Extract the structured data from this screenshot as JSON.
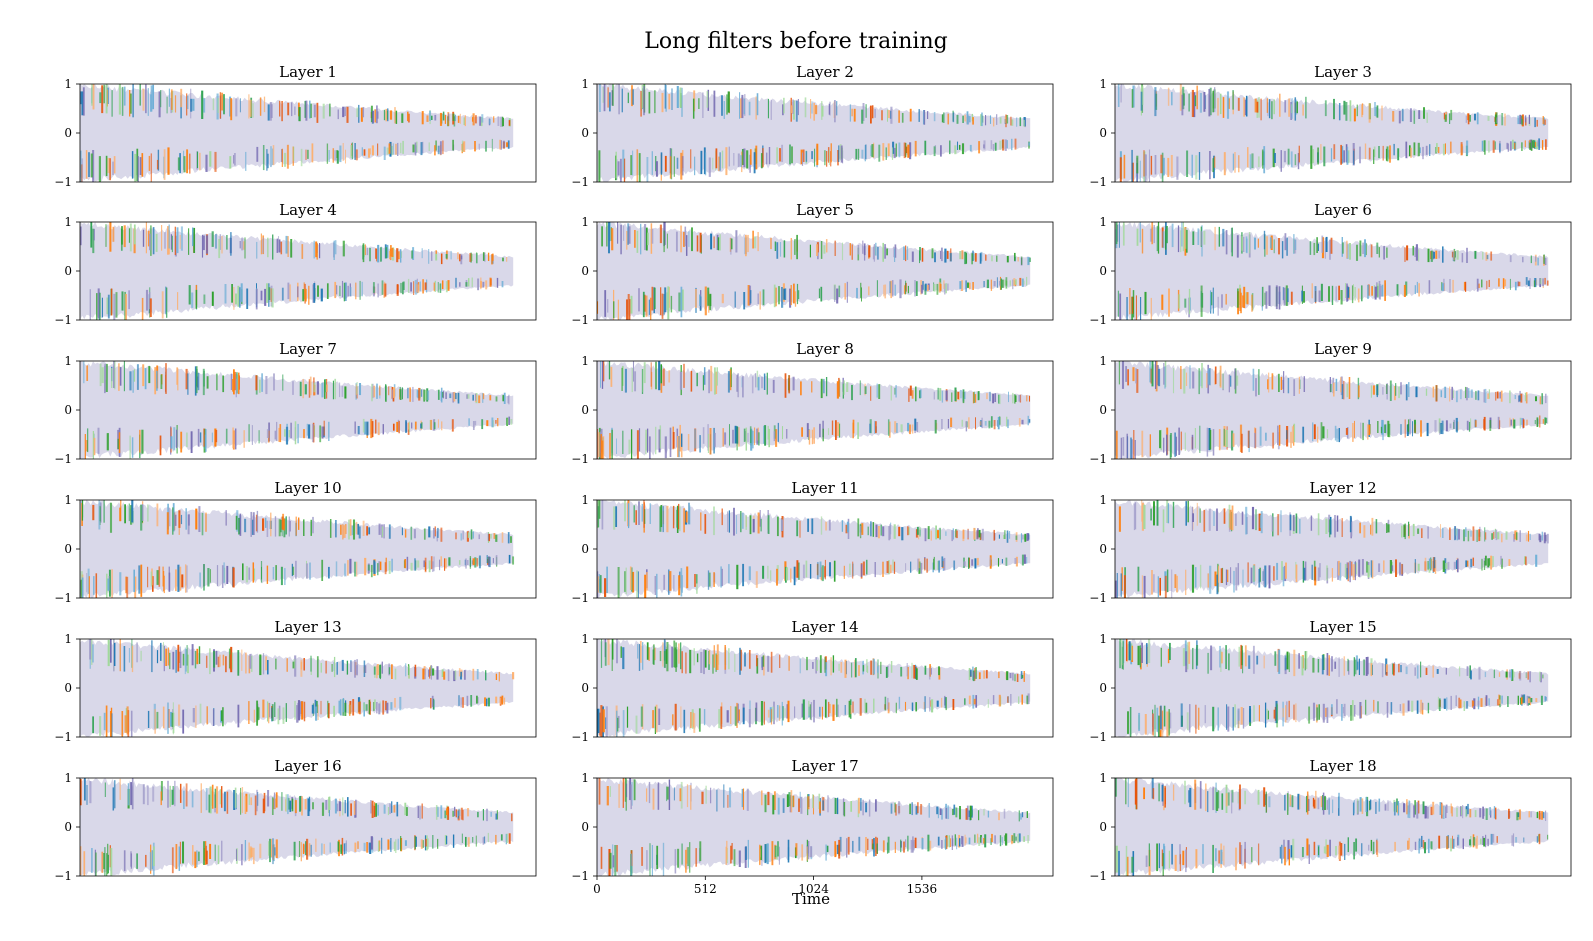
{
  "title": "Long filters before training",
  "xlabel": "Time",
  "panel_titles": [
    "Layer 1",
    "Layer 2",
    "Layer 3",
    "Layer 4",
    "Layer 5",
    "Layer 6",
    "Layer 7",
    "Layer 8",
    "Layer 9",
    "Layer 10",
    "Layer 11",
    "Layer 12",
    "Layer 13",
    "Layer 14",
    "Layer 15",
    "Layer 16",
    "Layer 17",
    "Layer 18"
  ],
  "y_ticks": [
    "1",
    "0",
    "−1"
  ],
  "x_ticks": [
    "0",
    "512",
    "1024",
    "1536"
  ],
  "colors": {
    "fill": "#d9d8e9",
    "series": [
      "#1f77b4",
      "#ff7f0e",
      "#2ca02c",
      "#756bb1",
      "#9e9ac8",
      "#a1d99b",
      "#6baed6",
      "#fdae6b",
      "#31a354",
      "#e6550d"
    ]
  },
  "chart_data": {
    "type": "line",
    "layout": "6x3 grid of subplots",
    "title": "Long filters before training",
    "xlabel": "Time",
    "xlim": [
      0,
      2048
    ],
    "ylim": [
      -1,
      1
    ],
    "x_tick_values": [
      0,
      512,
      1024,
      1536
    ],
    "y_tick_values": [
      -1,
      0,
      1
    ],
    "envelope": {
      "x": [
        0,
        512,
        1024,
        1536,
        2048
      ],
      "amplitude": [
        1.0,
        0.8,
        0.62,
        0.45,
        0.3
      ]
    },
    "subplots": [
      "Layer 1",
      "Layer 2",
      "Layer 3",
      "Layer 4",
      "Layer 5",
      "Layer 6",
      "Layer 7",
      "Layer 8",
      "Layer 9",
      "Layer 10",
      "Layer 11",
      "Layer 12",
      "Layer 13",
      "Layer 14",
      "Layer 15",
      "Layer 16",
      "Layer 17",
      "Layer 18"
    ],
    "grid": false,
    "legend": "none"
  }
}
